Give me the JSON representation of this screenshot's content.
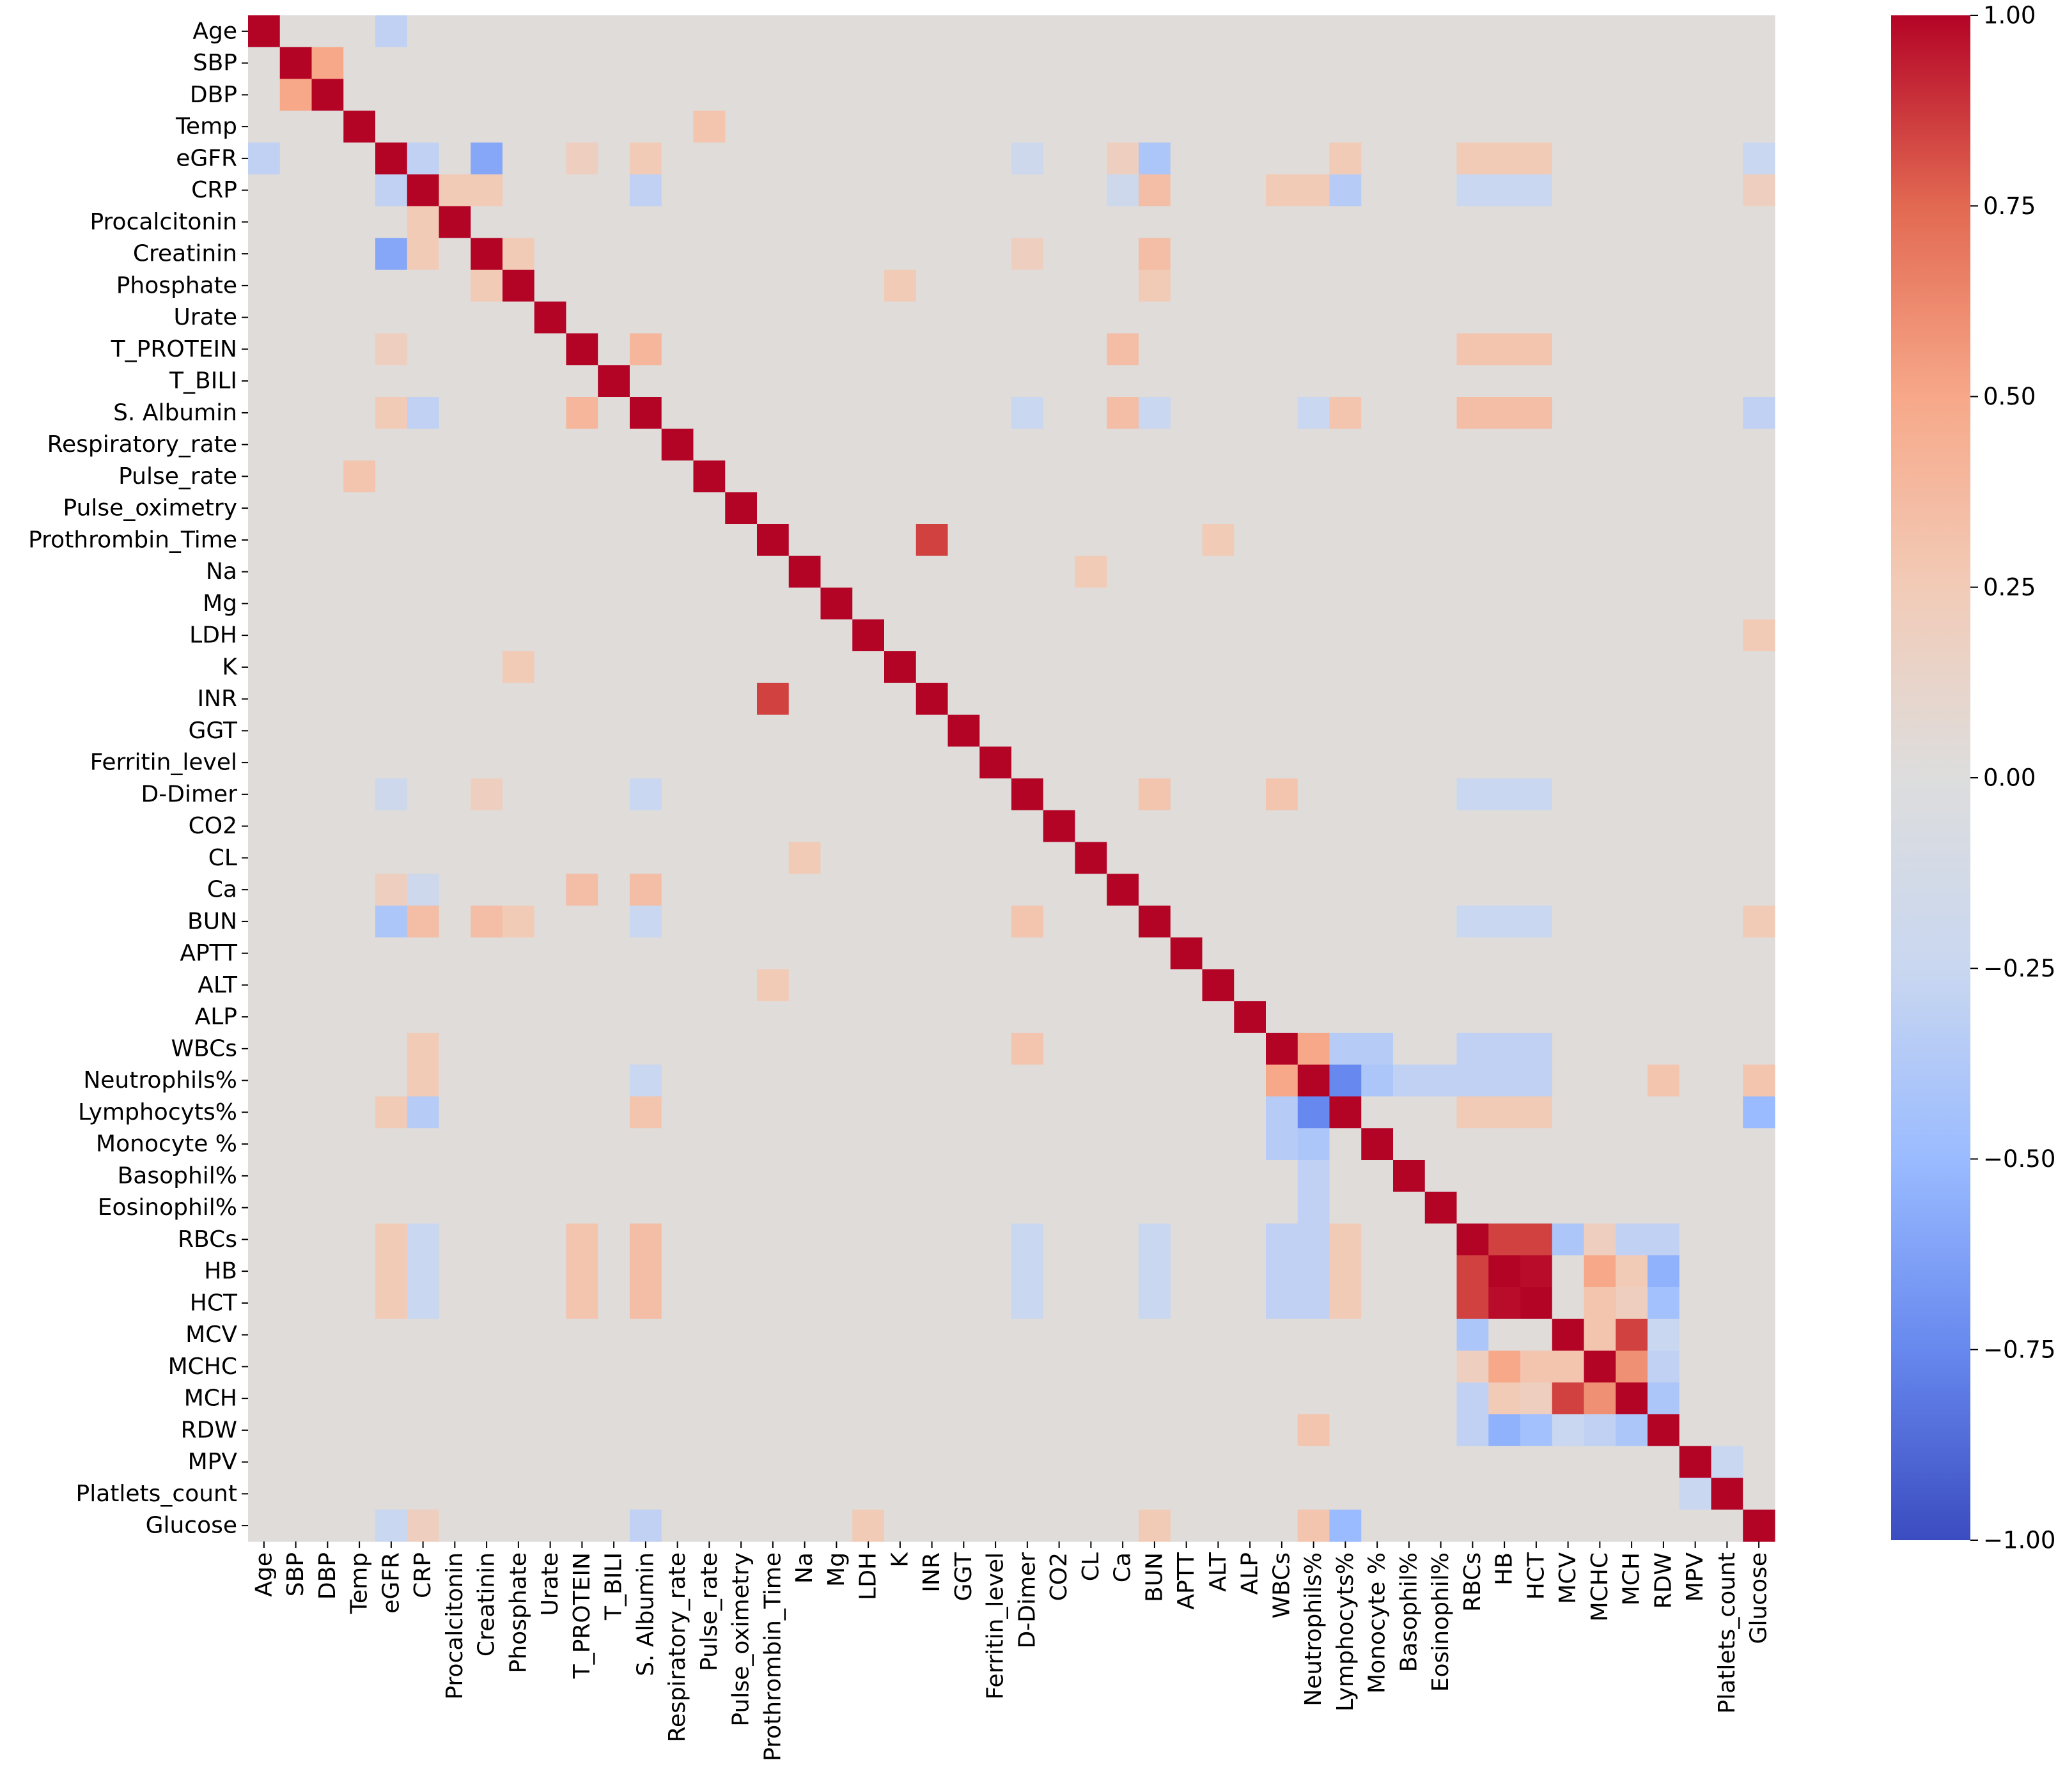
{
  "chart_data": {
    "type": "heatmap",
    "title": "",
    "xlabel": "",
    "ylabel": "",
    "colormap": "coolwarm",
    "colorscale": {
      "min": -1.0,
      "max": 1.0,
      "tick_values": [
        1.0,
        0.75,
        0.5,
        0.25,
        0.0,
        -0.25,
        -0.5,
        -0.75,
        -1.0
      ],
      "tick_labels": [
        "1.00",
        "0.75",
        "0.50",
        "0.25",
        "0.00",
        "−0.25",
        "−0.50",
        "−0.75",
        "−1.00"
      ],
      "colors": [
        "#3b4cc0",
        "#6788ee",
        "#9abbff",
        "#c9d7f0",
        "#dddddd",
        "#f2cbb7",
        "#f7a889",
        "#e26952",
        "#b40426"
      ]
    },
    "variables": [
      "Age",
      "SBP",
      "DBP",
      "Temp",
      "eGFR",
      "CRP",
      "Procalcitonin",
      "Creatinin",
      "Phosphate",
      "Urate",
      "T_PROTEIN",
      "T_BILI",
      "S. Albumin",
      "Respiratory_rate",
      "Pulse_rate",
      "Pulse_oximetry",
      "Prothrombin_Time",
      "Na",
      "Mg",
      "LDH",
      "K",
      "INR",
      "GGT",
      "Ferritin_level",
      "D-Dimer",
      "CO2",
      "CL",
      "Ca",
      "BUN",
      "APTT",
      "ALT",
      "ALP",
      "WBCs",
      "Neutrophils%",
      "Lymphocyts%",
      "Monocyte %",
      "Basophil%",
      "Eosinophil%",
      "RBCs",
      "HB",
      "HCT",
      "MCV",
      "MCHC",
      "MCH",
      "RDW",
      "MPV",
      "Platlets_count",
      "Glucose"
    ],
    "default_value": 0.02,
    "notable_correlations": [
      [
        "SBP",
        "DBP",
        0.5
      ],
      [
        "Temp",
        "Pulse_rate",
        0.3
      ],
      [
        "eGFR",
        "Creatinin",
        -0.6
      ],
      [
        "eGFR",
        "BUN",
        -0.4
      ],
      [
        "eGFR",
        "CRP",
        -0.3
      ],
      [
        "eGFR",
        "S. Albumin",
        0.25
      ],
      [
        "eGFR",
        "Lymphocyts%",
        0.25
      ],
      [
        "eGFR",
        "RBCs",
        0.25
      ],
      [
        "eGFR",
        "HB",
        0.25
      ],
      [
        "eGFR",
        "HCT",
        0.25
      ],
      [
        "eGFR",
        "Age",
        -0.3
      ],
      [
        "eGFR",
        "Glucose",
        -0.25
      ],
      [
        "eGFR",
        "T_PROTEIN",
        0.2
      ],
      [
        "eGFR",
        "Ca",
        0.2
      ],
      [
        "eGFR",
        "D-Dimer",
        -0.2
      ],
      [
        "CRP",
        "BUN",
        0.35
      ],
      [
        "CRP",
        "Procalcitonin",
        0.25
      ],
      [
        "CRP",
        "Creatinin",
        0.25
      ],
      [
        "CRP",
        "S. Albumin",
        -0.3
      ],
      [
        "CRP",
        "Lymphocyts%",
        -0.35
      ],
      [
        "CRP",
        "WBCs",
        0.25
      ],
      [
        "CRP",
        "Neutrophils%",
        0.25
      ],
      [
        "CRP",
        "RBCs",
        -0.25
      ],
      [
        "CRP",
        "HB",
        -0.25
      ],
      [
        "CRP",
        "HCT",
        -0.25
      ],
      [
        "CRP",
        "Ca",
        -0.2
      ],
      [
        "CRP",
        "Glucose",
        0.2
      ],
      [
        "Creatinin",
        "BUN",
        0.35
      ],
      [
        "Creatinin",
        "Phosphate",
        0.25
      ],
      [
        "Creatinin",
        "D-Dimer",
        0.2
      ],
      [
        "Phosphate",
        "K",
        0.25
      ],
      [
        "Phosphate",
        "BUN",
        0.25
      ],
      [
        "T_PROTEIN",
        "S. Albumin",
        0.4
      ],
      [
        "T_PROTEIN",
        "Ca",
        0.35
      ],
      [
        "T_PROTEIN",
        "RBCs",
        0.3
      ],
      [
        "T_PROTEIN",
        "HB",
        0.3
      ],
      [
        "T_PROTEIN",
        "HCT",
        0.3
      ],
      [
        "S. Albumin",
        "Ca",
        0.35
      ],
      [
        "S. Albumin",
        "RBCs",
        0.35
      ],
      [
        "S. Albumin",
        "HB",
        0.35
      ],
      [
        "S. Albumin",
        "HCT",
        0.35
      ],
      [
        "S. Albumin",
        "Glucose",
        -0.3
      ],
      [
        "S. Albumin",
        "Lymphocyts%",
        0.3
      ],
      [
        "S. Albumin",
        "BUN",
        -0.25
      ],
      [
        "S. Albumin",
        "Neutrophils%",
        -0.25
      ],
      [
        "S. Albumin",
        "D-Dimer",
        -0.25
      ],
      [
        "Prothrombin_Time",
        "INR",
        0.85
      ],
      [
        "Prothrombin_Time",
        "ALT",
        0.25
      ],
      [
        "LDH",
        "Glucose",
        0.25
      ],
      [
        "D-Dimer",
        "BUN",
        0.3
      ],
      [
        "D-Dimer",
        "WBCs",
        0.3
      ],
      [
        "D-Dimer",
        "RBCs",
        -0.25
      ],
      [
        "D-Dimer",
        "HB",
        -0.25
      ],
      [
        "D-Dimer",
        "HCT",
        -0.25
      ],
      [
        "CL",
        "Na",
        0.25
      ],
      [
        "BUN",
        "RBCs",
        -0.25
      ],
      [
        "BUN",
        "HB",
        -0.25
      ],
      [
        "BUN",
        "HCT",
        -0.25
      ],
      [
        "BUN",
        "Glucose",
        0.25
      ],
      [
        "WBCs",
        "Neutrophils%",
        0.5
      ],
      [
        "WBCs",
        "Lymphocyts%",
        -0.35
      ],
      [
        "WBCs",
        "Monocyte %",
        -0.35
      ],
      [
        "WBCs",
        "RBCs",
        -0.3
      ],
      [
        "WBCs",
        "HB",
        -0.3
      ],
      [
        "WBCs",
        "HCT",
        -0.3
      ],
      [
        "Neutrophils%",
        "Lymphocyts%",
        -0.75
      ],
      [
        "Neutrophils%",
        "Monocyte %",
        -0.4
      ],
      [
        "Neutrophils%",
        "Basophil%",
        -0.3
      ],
      [
        "Neutrophils%",
        "Eosinophil%",
        -0.3
      ],
      [
        "Neutrophils%",
        "RBCs",
        -0.3
      ],
      [
        "Neutrophils%",
        "HB",
        -0.3
      ],
      [
        "Neutrophils%",
        "HCT",
        -0.3
      ],
      [
        "Neutrophils%",
        "RDW",
        0.3
      ],
      [
        "Neutrophils%",
        "Glucose",
        0.3
      ],
      [
        "Lymphocyts%",
        "Glucose",
        -0.5
      ],
      [
        "Lymphocyts%",
        "RBCs",
        0.25
      ],
      [
        "Lymphocyts%",
        "HB",
        0.25
      ],
      [
        "Lymphocyts%",
        "HCT",
        0.25
      ],
      [
        "RBCs",
        "HB",
        0.85
      ],
      [
        "RBCs",
        "HCT",
        0.85
      ],
      [
        "RBCs",
        "MCV",
        -0.4
      ],
      [
        "RBCs",
        "MCHC",
        0.2
      ],
      [
        "RBCs",
        "MCH",
        -0.3
      ],
      [
        "RBCs",
        "RDW",
        -0.3
      ],
      [
        "HB",
        "HCT",
        0.98
      ],
      [
        "HB",
        "MCHC",
        0.5
      ],
      [
        "HB",
        "MCH",
        0.25
      ],
      [
        "HB",
        "RDW",
        -0.55
      ],
      [
        "HCT",
        "MCHC",
        0.3
      ],
      [
        "HCT",
        "MCH",
        0.2
      ],
      [
        "HCT",
        "RDW",
        -0.45
      ],
      [
        "MCV",
        "MCH",
        0.85
      ],
      [
        "MCV",
        "MCHC",
        0.3
      ],
      [
        "MCV",
        "RDW",
        -0.25
      ],
      [
        "MCHC",
        "MCH",
        0.6
      ],
      [
        "MCHC",
        "RDW",
        -0.3
      ],
      [
        "MCH",
        "RDW",
        -0.4
      ],
      [
        "MPV",
        "Platlets_count",
        -0.25
      ]
    ]
  }
}
